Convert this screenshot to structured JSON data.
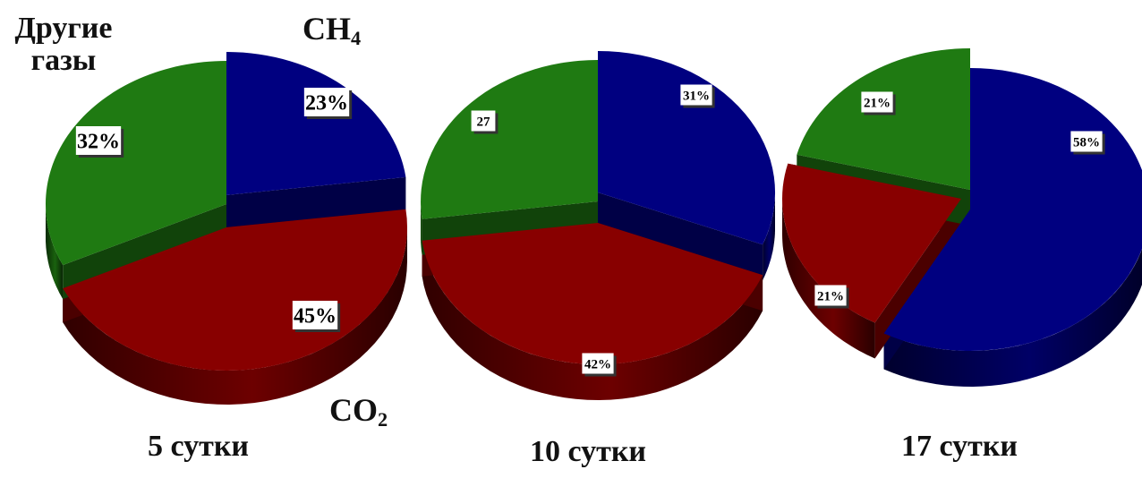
{
  "legend_labels": {
    "other_line1": "Другие",
    "other_line2": "газы",
    "ch4_main": "CH",
    "ch4_sub": "4",
    "co2_main": "CO",
    "co2_sub": "2"
  },
  "colors": {
    "CH4": "#000080",
    "CO2": "#880000",
    "other": "#1f7a12"
  },
  "chart_data": [
    {
      "type": "pie",
      "title": "5 сутки",
      "slices": [
        {
          "key": "CH4",
          "value": 23,
          "label": "23%"
        },
        {
          "key": "CO2",
          "value": 45,
          "label": "45%"
        },
        {
          "key": "other",
          "value": 32,
          "label": "32%"
        }
      ]
    },
    {
      "type": "pie",
      "title": "10 сутки",
      "slices": [
        {
          "key": "CH4",
          "value": 31,
          "label": "31%"
        },
        {
          "key": "CO2",
          "value": 42,
          "label": "42%"
        },
        {
          "key": "other",
          "value": 27,
          "label": "27"
        }
      ]
    },
    {
      "type": "pie",
      "title": "17 сутки",
      "slices": [
        {
          "key": "CH4",
          "value": 58,
          "label": "58%"
        },
        {
          "key": "CO2",
          "value": 21,
          "label": "21%"
        },
        {
          "key": "other",
          "value": 21,
          "label": "21%"
        }
      ]
    }
  ]
}
